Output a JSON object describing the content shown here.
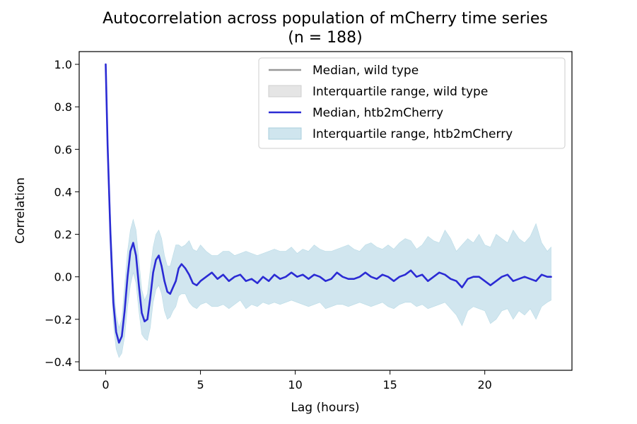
{
  "chart_data": {
    "type": "line",
    "title": "Autocorrelation across population of mCherry time series",
    "subtitle": "(n = 188)",
    "xlabel": "Lag (hours)",
    "ylabel": "Correlation",
    "xlim": [
      -1.4,
      24.6
    ],
    "ylim": [
      -0.44,
      1.06
    ],
    "xticks": [
      0,
      5,
      10,
      15,
      20
    ],
    "xtick_labels": [
      "0",
      "5",
      "10",
      "15",
      "20"
    ],
    "yticks": [
      -0.4,
      -0.2,
      0.0,
      0.2,
      0.4,
      0.6,
      0.8,
      1.0
    ],
    "ytick_labels": [
      "−0.4",
      "−0.2",
      "0.0",
      "0.2",
      "0.4",
      "0.6",
      "0.8",
      "1.0"
    ],
    "grid": false,
    "legend_position": "top-right",
    "legend": [
      {
        "label": "Median, wild type",
        "kind": "line",
        "color": "#999999"
      },
      {
        "label": "Interquartile range, wild type",
        "kind": "patch",
        "color": "#e5e5e5",
        "edge": "#cfcfcf"
      },
      {
        "label": "Median, htb2mCherry",
        "kind": "line",
        "color": "#2b2bd4"
      },
      {
        "label": "Interquartile range, htb2mCherry",
        "kind": "patch",
        "color": "#cfe5ee",
        "edge": "#a8cfdc"
      }
    ],
    "series": [
      {
        "name": "Median, htb2mCherry",
        "color": "#2b2bd4",
        "x": [
          0,
          0.1,
          0.25,
          0.4,
          0.55,
          0.7,
          0.85,
          1.0,
          1.15,
          1.3,
          1.45,
          1.6,
          1.75,
          1.9,
          2.05,
          2.2,
          2.35,
          2.5,
          2.65,
          2.8,
          2.95,
          3.1,
          3.25,
          3.4,
          3.55,
          3.7,
          3.85,
          4.0,
          4.2,
          4.4,
          4.6,
          4.8,
          5.0,
          5.3,
          5.6,
          5.9,
          6.2,
          6.5,
          6.8,
          7.1,
          7.4,
          7.7,
          8.0,
          8.3,
          8.6,
          8.9,
          9.2,
          9.5,
          9.8,
          10.1,
          10.4,
          10.7,
          11.0,
          11.3,
          11.6,
          11.9,
          12.2,
          12.5,
          12.8,
          13.1,
          13.4,
          13.7,
          14.0,
          14.3,
          14.6,
          14.9,
          15.2,
          15.5,
          15.8,
          16.1,
          16.4,
          16.7,
          17.0,
          17.3,
          17.6,
          17.9,
          18.2,
          18.5,
          18.8,
          19.1,
          19.4,
          19.7,
          20.0,
          20.3,
          20.6,
          20.9,
          21.2,
          21.5,
          21.8,
          22.1,
          22.4,
          22.7,
          23.0,
          23.3,
          23.5
        ],
        "values": [
          1.0,
          0.62,
          0.2,
          -0.12,
          -0.26,
          -0.31,
          -0.28,
          -0.16,
          0.0,
          0.12,
          0.16,
          0.1,
          -0.04,
          -0.17,
          -0.21,
          -0.2,
          -0.1,
          0.02,
          0.08,
          0.1,
          0.05,
          -0.02,
          -0.07,
          -0.08,
          -0.05,
          -0.02,
          0.04,
          0.06,
          0.04,
          0.01,
          -0.03,
          -0.04,
          -0.02,
          0.0,
          0.02,
          -0.01,
          0.01,
          -0.02,
          0.0,
          0.01,
          -0.02,
          -0.01,
          -0.03,
          0.0,
          -0.02,
          0.01,
          -0.01,
          0.0,
          0.02,
          0.0,
          0.01,
          -0.01,
          0.01,
          0.0,
          -0.02,
          -0.01,
          0.02,
          0.0,
          -0.01,
          -0.01,
          0.0,
          0.02,
          0.0,
          -0.01,
          0.01,
          0.0,
          -0.02,
          0.0,
          0.01,
          0.03,
          0.0,
          0.01,
          -0.02,
          0.0,
          0.02,
          0.01,
          -0.01,
          -0.02,
          -0.05,
          -0.01,
          0.0,
          0.0,
          -0.02,
          -0.04,
          -0.02,
          0.0,
          0.01,
          -0.02,
          -0.01,
          0.0,
          -0.01,
          -0.02,
          0.01,
          0.0,
          0.0
        ]
      },
      {
        "name": "Interquartile range, htb2mCherry",
        "kind": "band",
        "color": "#cfe5ee",
        "x": [
          0,
          0.1,
          0.25,
          0.4,
          0.55,
          0.7,
          0.85,
          1.0,
          1.15,
          1.3,
          1.45,
          1.6,
          1.75,
          1.9,
          2.05,
          2.2,
          2.35,
          2.5,
          2.65,
          2.8,
          2.95,
          3.1,
          3.25,
          3.4,
          3.55,
          3.7,
          3.85,
          4.0,
          4.2,
          4.4,
          4.6,
          4.8,
          5.0,
          5.3,
          5.6,
          5.9,
          6.2,
          6.5,
          6.8,
          7.1,
          7.4,
          7.7,
          8.0,
          8.3,
          8.6,
          8.9,
          9.2,
          9.5,
          9.8,
          10.1,
          10.4,
          10.7,
          11.0,
          11.3,
          11.6,
          11.9,
          12.2,
          12.5,
          12.8,
          13.1,
          13.4,
          13.7,
          14.0,
          14.3,
          14.6,
          14.9,
          15.2,
          15.5,
          15.8,
          16.1,
          16.4,
          16.7,
          17.0,
          17.3,
          17.6,
          17.9,
          18.2,
          18.5,
          18.8,
          19.1,
          19.4,
          19.7,
          20.0,
          20.3,
          20.6,
          20.9,
          21.2,
          21.5,
          21.8,
          22.1,
          22.4,
          22.7,
          23.0,
          23.3,
          23.5
        ],
        "upper": [
          1.0,
          0.68,
          0.3,
          -0.02,
          -0.18,
          -0.24,
          -0.2,
          -0.04,
          0.12,
          0.22,
          0.27,
          0.22,
          0.08,
          -0.06,
          -0.11,
          -0.08,
          0.03,
          0.14,
          0.2,
          0.22,
          0.18,
          0.1,
          0.05,
          0.05,
          0.1,
          0.15,
          0.15,
          0.14,
          0.15,
          0.17,
          0.13,
          0.12,
          0.15,
          0.12,
          0.1,
          0.1,
          0.12,
          0.12,
          0.1,
          0.11,
          0.12,
          0.11,
          0.1,
          0.11,
          0.12,
          0.13,
          0.12,
          0.12,
          0.14,
          0.11,
          0.13,
          0.12,
          0.15,
          0.13,
          0.12,
          0.12,
          0.13,
          0.14,
          0.15,
          0.13,
          0.12,
          0.15,
          0.16,
          0.14,
          0.13,
          0.15,
          0.13,
          0.16,
          0.18,
          0.17,
          0.13,
          0.15,
          0.19,
          0.17,
          0.16,
          0.22,
          0.18,
          0.12,
          0.15,
          0.18,
          0.16,
          0.2,
          0.15,
          0.14,
          0.2,
          0.18,
          0.16,
          0.22,
          0.18,
          0.16,
          0.19,
          0.25,
          0.16,
          0.12,
          0.14
        ],
        "lower": [
          1.0,
          0.55,
          0.1,
          -0.22,
          -0.34,
          -0.38,
          -0.36,
          -0.28,
          -0.14,
          -0.04,
          0.02,
          -0.03,
          -0.16,
          -0.27,
          -0.29,
          -0.3,
          -0.24,
          -0.12,
          -0.06,
          -0.04,
          -0.08,
          -0.16,
          -0.2,
          -0.19,
          -0.16,
          -0.14,
          -0.09,
          -0.08,
          -0.08,
          -0.12,
          -0.14,
          -0.15,
          -0.13,
          -0.12,
          -0.14,
          -0.14,
          -0.13,
          -0.15,
          -0.13,
          -0.11,
          -0.15,
          -0.13,
          -0.14,
          -0.12,
          -0.13,
          -0.12,
          -0.13,
          -0.12,
          -0.11,
          -0.12,
          -0.13,
          -0.14,
          -0.13,
          -0.12,
          -0.15,
          -0.14,
          -0.13,
          -0.13,
          -0.14,
          -0.13,
          -0.12,
          -0.13,
          -0.14,
          -0.13,
          -0.12,
          -0.14,
          -0.15,
          -0.13,
          -0.12,
          -0.12,
          -0.14,
          -0.13,
          -0.15,
          -0.14,
          -0.13,
          -0.12,
          -0.15,
          -0.18,
          -0.23,
          -0.16,
          -0.14,
          -0.15,
          -0.16,
          -0.22,
          -0.2,
          -0.16,
          -0.15,
          -0.2,
          -0.16,
          -0.18,
          -0.15,
          -0.2,
          -0.14,
          -0.12,
          -0.11
        ]
      }
    ]
  }
}
